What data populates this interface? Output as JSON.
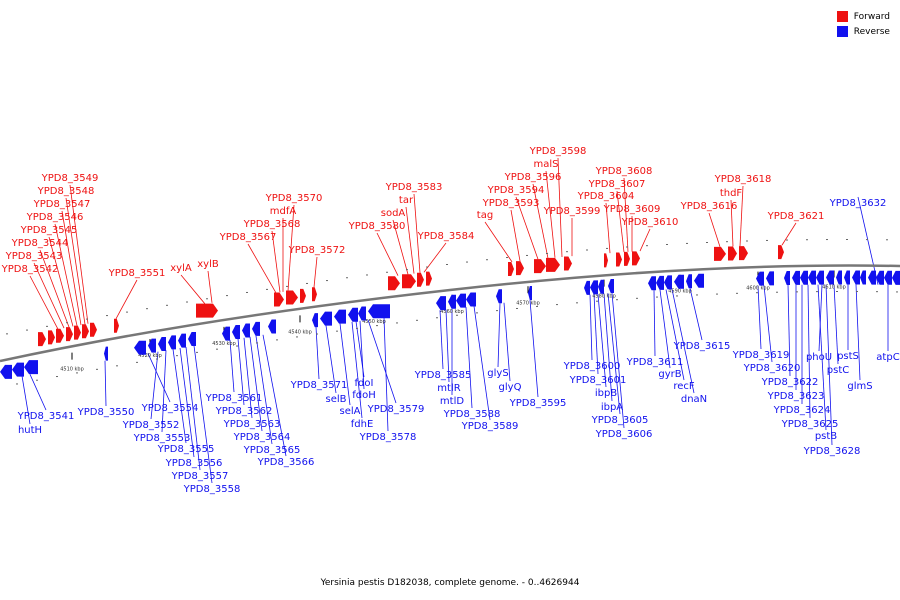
{
  "caption": "Yersinia pestis D182038, complete genome. - 0..4626944",
  "legend": [
    {
      "label": "Forward",
      "color": "#ee1111"
    },
    {
      "label": "Reverse",
      "color": "#1111ee"
    }
  ],
  "colors": {
    "forward": "#ee1111",
    "reverse": "#1111ee",
    "backbone": "#777777"
  },
  "ticks": [
    "4510 kbp",
    "4520 kbp",
    "4530 kbp",
    "4540 kbp",
    "4550 kbp",
    "4560 kbp",
    "4570 kbp",
    "4580 kbp",
    "4590 kbp",
    "4600 kbp",
    "4610 kbp"
  ],
  "forward_labels": [
    "YPD8_3549",
    "YPD8_3548",
    "YPD8_3547",
    "YPD8_3546",
    "YPD8_3545",
    "YPD8_3544",
    "YPD8_3543",
    "YPD8_3542",
    "YPD8_3551",
    "xylA",
    "xylB",
    "YPD8_3570",
    "mdfA",
    "YPD8_3568",
    "YPD8_3567",
    "YPD8_3572",
    "YPD8_3583",
    "tar",
    "sodA",
    "YPD8_3580",
    "YPD8_3584",
    "YPD8_3598",
    "malS",
    "YPD8_3596",
    "YPD8_3594",
    "YPD8_3593",
    "tag",
    "YPD8_3599",
    "YPD8_3608",
    "YPD8_3607",
    "YPD8_3604",
    "YPD8_3609",
    "YPD8_3610",
    "YPD8_3618",
    "thdF",
    "YPD8_3616",
    "YPD8_3621"
  ],
  "reverse_labels": [
    "YPD8_3632",
    "YPD8_3541",
    "hutH",
    "YPD8_3550",
    "YPD8_3554",
    "YPD8_3552",
    "YPD8_3553",
    "YPD8_3555",
    "YPD8_3556",
    "YPD8_3557",
    "YPD8_3558",
    "YPD8_3561",
    "YPD8_3562",
    "YPD8_3563",
    "YPD8_3564",
    "YPD8_3565",
    "YPD8_3566",
    "YPD8_3571",
    "selB",
    "selA",
    "fdhE",
    "fdoI",
    "fdoH",
    "YPD8_3579",
    "YPD8_3578",
    "YPD8_3585",
    "mtlR",
    "mtlD",
    "YPD8_3588",
    "YPD8_3589",
    "glyS",
    "glyQ",
    "YPD8_3595",
    "YPD8_3600",
    "YPD8_3601",
    "ibpB",
    "ibpA",
    "YPD8_3605",
    "YPD8_3606",
    "YPD8_3611",
    "gyrB",
    "recF",
    "dnaN",
    "YPD8_3615",
    "YPD8_3619",
    "YPD8_3620",
    "YPD8_3622",
    "YPD8_3623",
    "YPD8_3624",
    "YPD8_3625",
    "pstB",
    "YPD8_3628",
    "phoU",
    "pstC",
    "pstS",
    "glmS",
    "atpC"
  ]
}
